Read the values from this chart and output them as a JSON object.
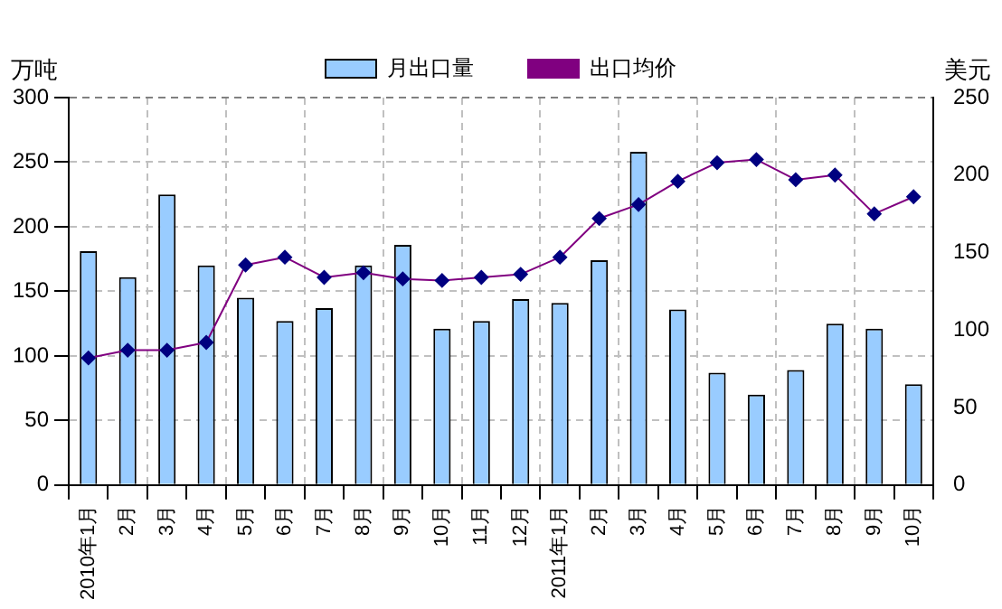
{
  "chart_data": {
    "type": "bar",
    "ylabel": "万吨",
    "y2label": "美元",
    "categories": [
      "2010年1月",
      "2月",
      "3月",
      "4月",
      "5月",
      "6月",
      "7月",
      "8月",
      "9月",
      "10月",
      "11月",
      "12月",
      "2011年1月",
      "2月",
      "3月",
      "4月",
      "5月",
      "6月",
      "7月",
      "8月",
      "9月",
      "10月"
    ],
    "series": [
      {
        "name": "月出口量",
        "color": "#99ccff",
        "values": [
          181,
          161,
          225,
          170,
          145,
          127,
          137,
          170,
          186,
          121,
          127,
          144,
          141,
          174,
          258,
          136,
          87,
          70,
          89,
          125,
          121,
          78
        ]
      },
      {
        "name": "出口均价",
        "type": "line",
        "axis": "y2",
        "color": "#800080",
        "marker": "diamond",
        "values": [
          82,
          87,
          87,
          92,
          142,
          147,
          134,
          137,
          133,
          132,
          134,
          136,
          147,
          172,
          181,
          196,
          208,
          210,
          197,
          200,
          175,
          186
        ]
      }
    ],
    "ylim": [
      0,
      300
    ],
    "yticks": [
      0,
      50,
      100,
      150,
      200,
      250,
      300
    ],
    "y2lim": [
      0,
      250
    ],
    "y2ticks": [
      0,
      50,
      100,
      150,
      200,
      250
    ],
    "grid": true,
    "legend": "top"
  }
}
